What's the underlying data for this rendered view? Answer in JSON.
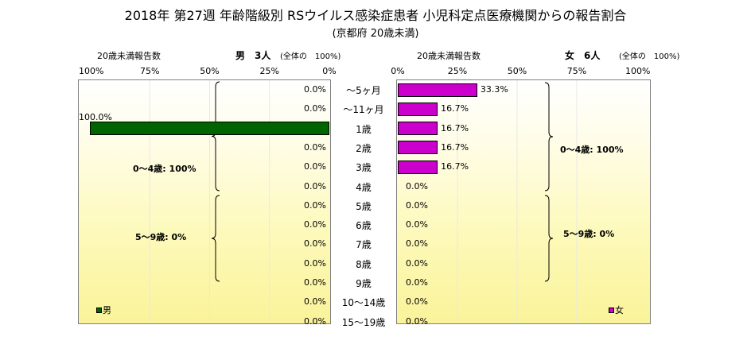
{
  "title": "2018年 第27週 年齢階級別 RSウイルス感染症患者 小児科定点医療機関からの報告割合",
  "subtitle": "(京都府 20歳未満)",
  "left_panel": {
    "count_label": "20歳未満報告数",
    "header": "男　3人",
    "total_label": "(全体の　100%)",
    "ticks": [
      "100%",
      "75%",
      "50%",
      "25%",
      "0%"
    ],
    "legend": "男",
    "color": "#006400",
    "group1_label": "0～4歳: 100%",
    "group2_label": "5～9歳: 0%"
  },
  "right_panel": {
    "count_label": "20歳未満報告数",
    "header": "女　6人",
    "total_label": "(全体の　100%)",
    "ticks": [
      "0%",
      "25%",
      "50%",
      "75%",
      "100%"
    ],
    "legend": "女",
    "color": "#cc00cc",
    "group1_label": "0～4歳: 100%",
    "group2_label": "5～9歳: 0%"
  },
  "chart_data": {
    "type": "bar",
    "title": "2018年 第27週 年齢階級別 RSウイルス感染症患者 小児科定点医療機関からの報告割合",
    "subtitle": "(京都府 20歳未満)",
    "categories": [
      "～5ヶ月",
      "～11ヶ月",
      "1歳",
      "2歳",
      "3歳",
      "4歳",
      "5歳",
      "6歳",
      "7歳",
      "8歳",
      "9歳",
      "10～14歳",
      "15～19歳"
    ],
    "series": [
      {
        "name": "男",
        "values": [
          0,
          0,
          100,
          0,
          0,
          0,
          0,
          0,
          0,
          0,
          0,
          0,
          0
        ],
        "labels": [
          "0.0%",
          "0.0%",
          "100.0%",
          "0.0%",
          "0.0%",
          "0.0%",
          "0.0%",
          "0.0%",
          "0.0%",
          "0.0%",
          "0.0%",
          "0.0%",
          "0.0%"
        ]
      },
      {
        "name": "女",
        "values": [
          33.3,
          16.7,
          16.7,
          16.7,
          16.7,
          0,
          0,
          0,
          0,
          0,
          0,
          0,
          0
        ],
        "labels": [
          "33.3%",
          "16.7%",
          "16.7%",
          "16.7%",
          "16.7%",
          "0.0%",
          "0.0%",
          "0.0%",
          "0.0%",
          "0.0%",
          "0.0%",
          "0.0%",
          "0.0%"
        ]
      }
    ],
    "xlim": [
      0,
      100
    ]
  }
}
